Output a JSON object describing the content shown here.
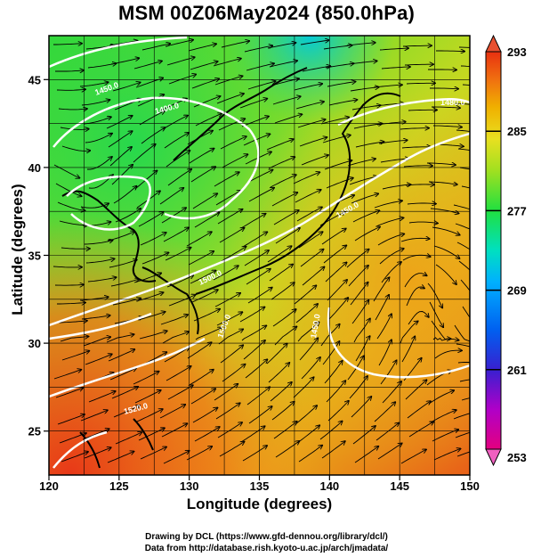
{
  "title": "MSM 00Z06May2024 (850.0hPa)",
  "xlabel": "Longitude (degrees)",
  "ylabel": "Latitude  (degrees)",
  "credit_line1": "Drawing by DCL (https://www.gfd-dennou.org/library/dcl/)",
  "credit_line2": "Data from http://database.rish.kyoto-u.ac.jp/arch/jmadata/",
  "map": {
    "lon_range": [
      120,
      150
    ],
    "lat_range": [
      22.5,
      47.5
    ],
    "lon_ticks": [
      "120",
      "125",
      "130",
      "135",
      "140",
      "145",
      "150"
    ],
    "lat_ticks": [
      "25",
      "30",
      "35",
      "40",
      "45"
    ],
    "grid_lons": [
      120,
      122.5,
      125,
      127.5,
      130,
      132.5,
      135,
      137.5,
      140,
      142.5,
      145,
      147.5,
      150
    ],
    "grid_lats": [
      25,
      27.5,
      30,
      32.5,
      35,
      37.5,
      40,
      42.5,
      45,
      47.5
    ],
    "variable": "temperature (K) shaded, streamlines of wind, geopotential height contours",
    "contour_labels": [
      "1400.0",
      "1450.0",
      "1500.0",
      "1520.0",
      "1500.0",
      "1450.0",
      "1450.0",
      "1480.0"
    ]
  },
  "colorbar": {
    "min": 253,
    "max": 293,
    "tick_labels": [
      "293",
      "285",
      "277",
      "269",
      "261",
      "253"
    ],
    "colors": [
      "#e4007f",
      "#b000c8",
      "#5a00c8",
      "#0020e0",
      "#0078ff",
      "#00c8ff",
      "#00e6c8",
      "#00e070",
      "#30e030",
      "#90e020",
      "#d8e020",
      "#f0c000",
      "#f09000",
      "#f06010",
      "#e83010"
    ]
  }
}
